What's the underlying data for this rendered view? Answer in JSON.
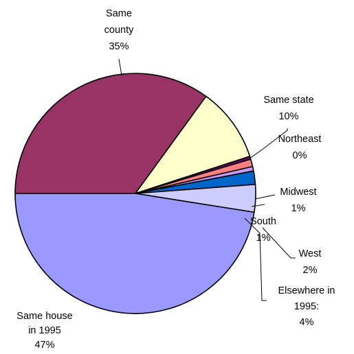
{
  "chart_data": {
    "type": "pie",
    "title": "",
    "start": "9 o'clock, clockwise",
    "legend": "none",
    "slices": [
      {
        "name": "Same county",
        "value": 35,
        "color": "#993366",
        "label_lines": [
          "Same",
          "county",
          "35%"
        ]
      },
      {
        "name": "Same state",
        "value": 10,
        "color": "#FFFFCC",
        "label_lines": [
          "Same state",
          "10%"
        ]
      },
      {
        "name": "Northeast",
        "value": 0.4,
        "color": "#660066",
        "label_lines": [
          "Northeast",
          "0%"
        ]
      },
      {
        "name": "Midwest",
        "value": 1,
        "color": "#FF8080",
        "label_lines": [
          "Midwest",
          "1%"
        ]
      },
      {
        "name": "South",
        "value": 0.6,
        "color": "#CC99FF",
        "label_lines": [
          "South",
          "1%"
        ]
      },
      {
        "name": "West",
        "value": 1.8,
        "color": "#0066CC",
        "label_lines": [
          "West",
          "2%"
        ]
      },
      {
        "name": "Elsewhere in 1995:",
        "value": 3.7,
        "color": "#CCCCFF",
        "label_lines": [
          "Elsewhere in",
          "1995:",
          "4%"
        ]
      },
      {
        "name": "Same house in 1995",
        "value": 47.5,
        "color": "#9999FF",
        "label_lines": [
          "Same house",
          "in 1995",
          "47%"
        ]
      }
    ]
  }
}
